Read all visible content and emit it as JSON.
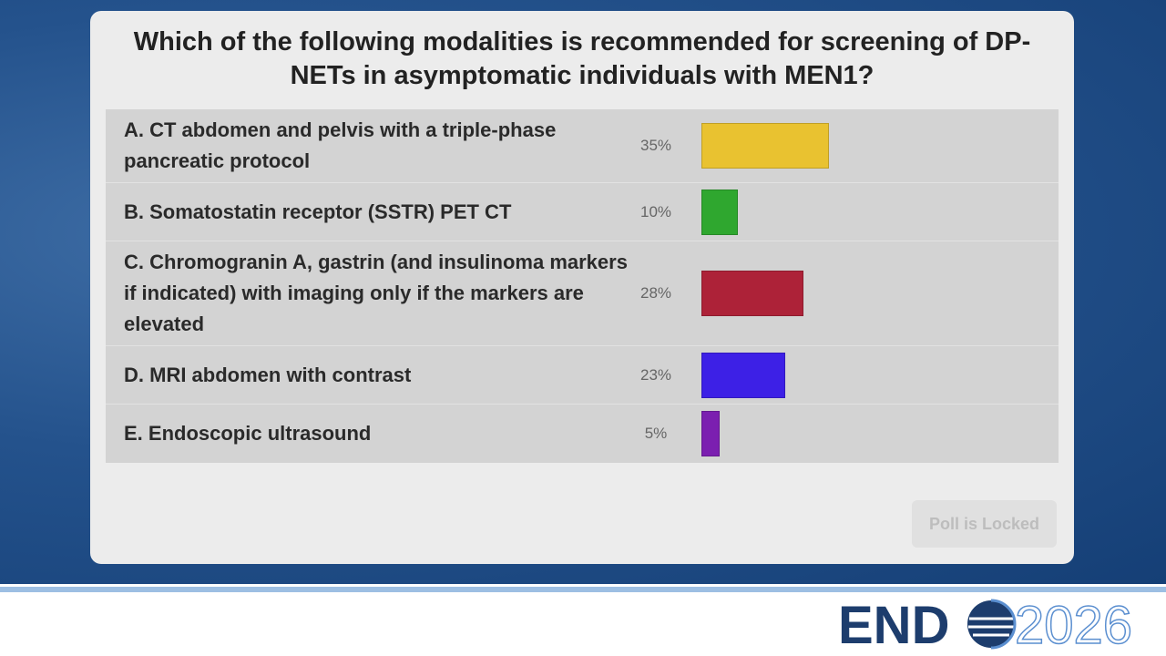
{
  "chart_data": {
    "type": "bar",
    "title": "Which of the following modalities is recommended for screening of DP-NETs in asymptomatic individuals with MEN1?",
    "categories": [
      "A. CT abdomen and pelvis with a triple-phase pancreatic protocol",
      "B. Somatostatin receptor (SSTR) PET CT",
      "C. Chromogranin A, gastrin (and insulinoma markers if indicated) with imaging only if the markers are elevated",
      "D. MRI abdomen with contrast",
      "E. Endoscopic ultrasound"
    ],
    "values": [
      35,
      10,
      28,
      23,
      5
    ],
    "value_labels": [
      "35%",
      "10%",
      "28%",
      "23%",
      "5%"
    ],
    "colors": [
      "#e9c230",
      "#2fa72f",
      "#ad2238",
      "#3d20e6",
      "#7b1fb0"
    ]
  },
  "button": "Poll is Locked",
  "logo": {
    "left": "END",
    "right": "2026"
  }
}
